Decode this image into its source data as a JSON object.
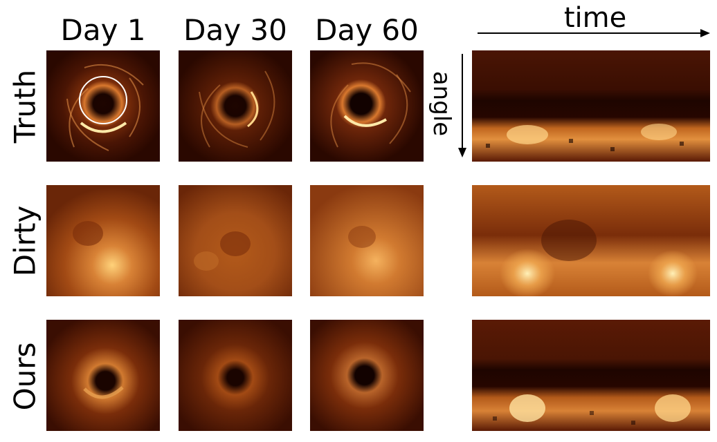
{
  "columns": [
    "Day 1",
    "Day 30",
    "Day 60"
  ],
  "rows": [
    "Truth",
    "Dirty",
    "Ours"
  ],
  "axes": {
    "horizontal": "time",
    "vertical": "angle"
  },
  "colormap": {
    "dark": "#2a0800",
    "mid": "#b35a1a",
    "bright": "#ffe9a8"
  },
  "circle_overlay_color": "#ffffff"
}
